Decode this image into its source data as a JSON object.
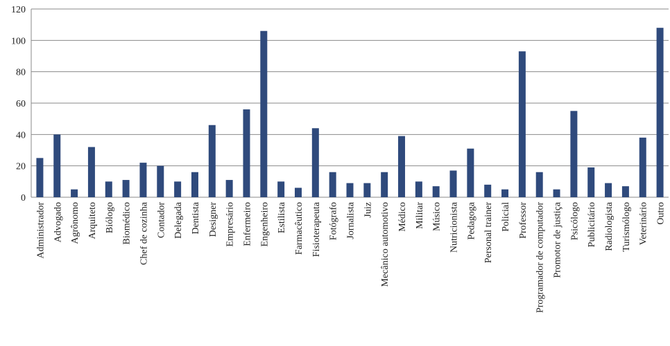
{
  "chart_data": {
    "type": "bar",
    "categories": [
      "Administrador",
      "Advogado",
      "Agrônomo",
      "Arquiteto",
      "Biólogo",
      "Biomédico",
      "Chef de cozinha",
      "Contador",
      "Delegada",
      "Dentista",
      "Designer",
      "Empresário",
      "Enfermeiro",
      "Engenheiro",
      "Estilista",
      "Farmacêutico",
      "Fisioterapeuta",
      "Fotógrafo",
      "Jornalista",
      "Juiz",
      "Mecânico automotivo",
      "Médico",
      "Militar",
      "Músico",
      "Nutricionista",
      "Pedagoga",
      "Personal trainer",
      "Policial",
      "Professor",
      "Programador de computador",
      "Promotor de justiça",
      "Psicólogo",
      "Publicitário",
      "Radiologista",
      "Turismólogo",
      "Veterinário",
      "Outro"
    ],
    "values": [
      25,
      40,
      5,
      32,
      10,
      11,
      22,
      20,
      10,
      16,
      46,
      11,
      56,
      106,
      10,
      6,
      44,
      16,
      9,
      9,
      16,
      39,
      10,
      7,
      17,
      31,
      8,
      5,
      93,
      16,
      5,
      55,
      19,
      9,
      7,
      38,
      108
    ],
    "color": "#2f4a7c",
    "ylim": [
      0,
      120
    ],
    "yticks": [
      0,
      20,
      40,
      60,
      80,
      100,
      120
    ],
    "grid": true
  }
}
